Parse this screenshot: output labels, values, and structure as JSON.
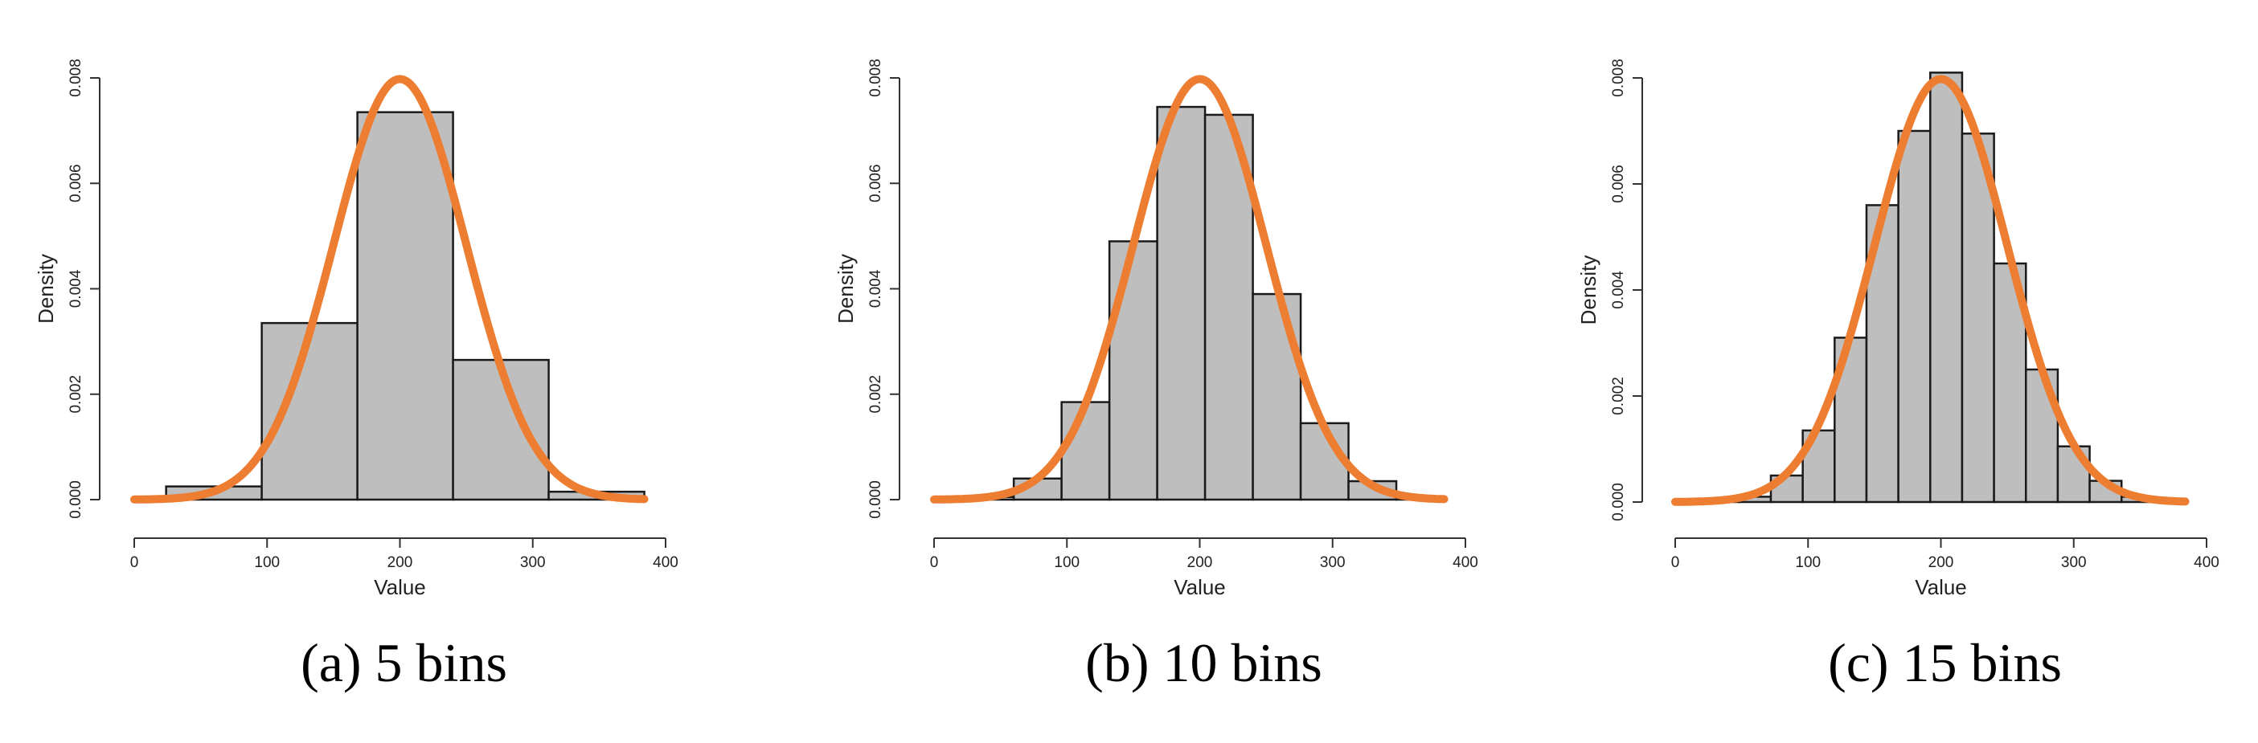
{
  "chart_data": [
    {
      "type": "bar",
      "caption": "(a) 5 bins",
      "xlabel": "Value",
      "ylabel": "Density",
      "xlim": [
        0,
        400
      ],
      "ylim": [
        0,
        0.008
      ],
      "xticks": [
        "0",
        "100",
        "200",
        "300",
        "400"
      ],
      "yticks": [
        "0.000",
        "0.002",
        "0.004",
        "0.006",
        "0.008"
      ],
      "bins": [
        {
          "x0": 24,
          "x1": 96,
          "density": 0.00025
        },
        {
          "x0": 96,
          "x1": 168,
          "density": 0.00335
        },
        {
          "x0": 168,
          "x1": 240,
          "density": 0.00735
        },
        {
          "x0": 240,
          "x1": 312,
          "density": 0.00265
        },
        {
          "x0": 312,
          "x1": 384,
          "density": 0.00015
        }
      ],
      "curve": {
        "type": "normal-density",
        "mean": 200,
        "sd": 50,
        "x_range": [
          0,
          385
        ],
        "color": "#ED7D31"
      },
      "bar_color": "#BEBEBE",
      "grid": false
    },
    {
      "type": "bar",
      "caption": "(b) 10 bins",
      "xlabel": "Value",
      "ylabel": "Density",
      "xlim": [
        0,
        400
      ],
      "ylim": [
        0,
        0.008
      ],
      "xticks": [
        "0",
        "100",
        "200",
        "300",
        "400"
      ],
      "yticks": [
        "0.000",
        "0.002",
        "0.004",
        "0.006",
        "0.008"
      ],
      "bins": [
        {
          "x0": 24,
          "x1": 60,
          "density": 5e-05
        },
        {
          "x0": 60,
          "x1": 96,
          "density": 0.0004
        },
        {
          "x0": 96,
          "x1": 132,
          "density": 0.00185
        },
        {
          "x0": 132,
          "x1": 168,
          "density": 0.0049
        },
        {
          "x0": 168,
          "x1": 204,
          "density": 0.00745
        },
        {
          "x0": 204,
          "x1": 240,
          "density": 0.0073
        },
        {
          "x0": 240,
          "x1": 276,
          "density": 0.0039
        },
        {
          "x0": 276,
          "x1": 312,
          "density": 0.00145
        },
        {
          "x0": 312,
          "x1": 348,
          "density": 0.00035
        },
        {
          "x0": 348,
          "x1": 384,
          "density": 5e-05
        }
      ],
      "curve": {
        "type": "normal-density",
        "mean": 200,
        "sd": 50,
        "x_range": [
          0,
          385
        ],
        "color": "#ED7D31"
      },
      "bar_color": "#BEBEBE",
      "grid": false
    },
    {
      "type": "bar",
      "caption": "(c) 15 bins",
      "xlabel": "Value",
      "ylabel": "Density",
      "xlim": [
        0,
        400
      ],
      "ylim": [
        0,
        0.008
      ],
      "xticks": [
        "0",
        "100",
        "200",
        "300",
        "400"
      ],
      "yticks": [
        "0.000",
        "0.002",
        "0.004",
        "0.006",
        "0.008"
      ],
      "bins": [
        {
          "x0": 24,
          "x1": 48,
          "density": 2e-05
        },
        {
          "x0": 48,
          "x1": 72,
          "density": 0.0001
        },
        {
          "x0": 72,
          "x1": 96,
          "density": 0.0005
        },
        {
          "x0": 96,
          "x1": 120,
          "density": 0.00135
        },
        {
          "x0": 120,
          "x1": 144,
          "density": 0.0031
        },
        {
          "x0": 144,
          "x1": 168,
          "density": 0.0056
        },
        {
          "x0": 168,
          "x1": 192,
          "density": 0.007
        },
        {
          "x0": 192,
          "x1": 216,
          "density": 0.0081
        },
        {
          "x0": 216,
          "x1": 240,
          "density": 0.00695
        },
        {
          "x0": 240,
          "x1": 264,
          "density": 0.0045
        },
        {
          "x0": 264,
          "x1": 288,
          "density": 0.0025
        },
        {
          "x0": 288,
          "x1": 312,
          "density": 0.00105
        },
        {
          "x0": 312,
          "x1": 336,
          "density": 0.0004
        },
        {
          "x0": 336,
          "x1": 360,
          "density": 0.0001
        },
        {
          "x0": 360,
          "x1": 384,
          "density": 2e-05
        }
      ],
      "curve": {
        "type": "normal-density",
        "mean": 200,
        "sd": 50,
        "x_range": [
          0,
          385
        ],
        "color": "#ED7D31"
      },
      "bar_color": "#BEBEBE",
      "grid": false
    }
  ]
}
